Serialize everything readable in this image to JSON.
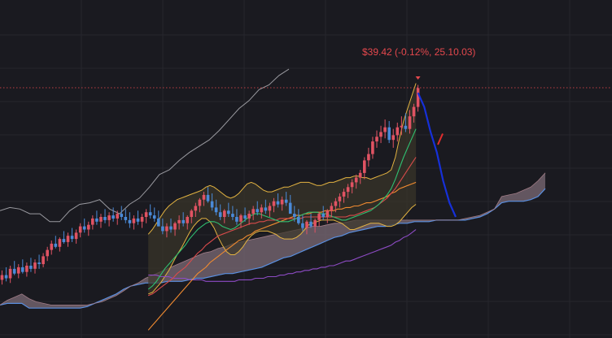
{
  "price_label": "$39.42 (-0.12%, 25.10.03)",
  "colors": {
    "background": "#1a1a20",
    "grid": "#26262d",
    "up": "#4a8ad8",
    "down": "#e05363",
    "bollinger": "#e3b341",
    "bb_fill": "#3a362a",
    "sma_short": "#2fbf71",
    "sma_mid": "#d94b4b",
    "sma_long": "#ef8a30",
    "sma_longest": "#8d4bc4",
    "cloud": "#7c6b76",
    "span_b": "#5a8fe0",
    "lagging": "#9a9aa0",
    "projection_blue": "#1630d9",
    "projection_red": "#e32d2d",
    "price_line": "#e5484d"
  },
  "chart_data": {
    "type": "line",
    "price_label": "$39.42 (-0.12%, 25.10.03)",
    "last_close": 39.42,
    "last_change_pct": -0.12,
    "last_date": "25.10.03",
    "ylim": [
      23.5,
      45
    ],
    "bars": 102,
    "projection_bars": 31,
    "candles": [
      [
        27.2,
        27.8,
        26.9,
        27.5
      ],
      [
        27.5,
        28.0,
        27.1,
        27.3
      ],
      [
        27.3,
        28.1,
        27.0,
        27.9
      ],
      [
        27.9,
        28.4,
        27.5,
        27.6
      ],
      [
        27.6,
        28.2,
        27.3,
        28.0
      ],
      [
        28.0,
        28.5,
        27.6,
        27.7
      ],
      [
        27.7,
        28.3,
        27.4,
        28.1
      ],
      [
        28.1,
        28.6,
        27.7,
        27.9
      ],
      [
        27.9,
        28.5,
        27.6,
        28.3
      ],
      [
        28.3,
        28.8,
        27.9,
        28.2
      ],
      [
        28.2,
        28.9,
        28.0,
        28.7
      ],
      [
        28.7,
        29.3,
        28.4,
        29.1
      ],
      [
        29.1,
        29.7,
        28.8,
        29.5
      ],
      [
        29.5,
        30.0,
        29.2,
        29.3
      ],
      [
        29.3,
        29.9,
        29.0,
        29.8
      ],
      [
        29.8,
        30.3,
        29.5,
        29.6
      ],
      [
        29.6,
        30.2,
        29.3,
        30.0
      ],
      [
        30.0,
        30.5,
        29.6,
        29.8
      ],
      [
        29.8,
        30.4,
        29.5,
        30.2
      ],
      [
        30.2,
        30.8,
        29.9,
        30.6
      ],
      [
        30.6,
        31.1,
        30.2,
        30.4
      ],
      [
        30.4,
        30.9,
        30.0,
        30.7
      ],
      [
        30.7,
        31.3,
        30.4,
        31.1
      ],
      [
        31.1,
        31.6,
        30.7,
        30.9
      ],
      [
        30.9,
        31.4,
        30.5,
        31.2
      ],
      [
        31.2,
        31.7,
        30.8,
        31.0
      ],
      [
        31.0,
        31.5,
        30.6,
        31.3
      ],
      [
        31.3,
        31.8,
        30.9,
        31.1
      ],
      [
        31.1,
        31.6,
        30.7,
        31.4
      ],
      [
        31.4,
        31.9,
        31.0,
        31.2
      ],
      [
        31.2,
        31.7,
        30.8,
        31.0
      ],
      [
        31.0,
        31.5,
        30.5,
        30.8
      ],
      [
        30.8,
        31.3,
        30.4,
        31.1
      ],
      [
        31.1,
        31.6,
        30.7,
        30.9
      ],
      [
        30.9,
        31.4,
        30.5,
        31.2
      ],
      [
        31.2,
        31.7,
        30.8,
        31.5
      ],
      [
        31.5,
        32.0,
        31.1,
        31.3
      ],
      [
        31.3,
        31.8,
        30.9,
        31.1
      ],
      [
        31.1,
        31.6,
        30.6,
        30.6
      ],
      [
        30.6,
        31.1,
        30.1,
        30.3
      ],
      [
        30.3,
        30.8,
        29.9,
        30.6
      ],
      [
        30.6,
        31.1,
        30.2,
        30.4
      ],
      [
        30.4,
        30.9,
        30.0,
        30.8
      ],
      [
        30.8,
        31.3,
        30.4,
        31.0
      ],
      [
        31.0,
        31.5,
        30.6,
        30.8
      ],
      [
        30.8,
        31.3,
        30.4,
        31.2
      ],
      [
        31.2,
        31.7,
        30.8,
        31.6
      ],
      [
        31.6,
        32.1,
        31.2,
        31.9
      ],
      [
        31.9,
        32.4,
        31.5,
        32.3
      ],
      [
        32.3,
        32.8,
        31.9,
        32.6
      ],
      [
        32.6,
        33.1,
        32.1,
        32.2
      ],
      [
        32.2,
        32.7,
        31.6,
        31.8
      ],
      [
        31.8,
        32.3,
        31.3,
        31.5
      ],
      [
        31.5,
        32.0,
        31.0,
        31.2
      ],
      [
        31.2,
        31.7,
        30.8,
        31.6
      ],
      [
        31.6,
        32.1,
        31.2,
        31.4
      ],
      [
        31.4,
        31.9,
        31.0,
        31.2
      ],
      [
        31.2,
        31.7,
        30.7,
        30.9
      ],
      [
        30.9,
        31.4,
        30.5,
        31.3
      ],
      [
        31.3,
        31.8,
        30.9,
        31.1
      ],
      [
        31.1,
        31.6,
        30.7,
        31.4
      ],
      [
        31.4,
        31.9,
        31.0,
        31.7
      ],
      [
        31.7,
        32.2,
        31.3,
        31.5
      ],
      [
        31.5,
        32.0,
        31.1,
        31.8
      ],
      [
        31.8,
        32.3,
        31.4,
        31.6
      ],
      [
        31.6,
        32.1,
        31.2,
        31.9
      ],
      [
        31.9,
        32.4,
        31.5,
        32.2
      ],
      [
        32.2,
        32.7,
        31.8,
        32.0
      ],
      [
        32.0,
        32.5,
        31.6,
        32.3
      ],
      [
        32.3,
        32.8,
        31.9,
        32.1
      ],
      [
        32.1,
        32.6,
        31.6,
        31.4
      ],
      [
        31.4,
        31.9,
        30.9,
        31.2
      ],
      [
        31.2,
        31.7,
        30.7,
        30.8
      ],
      [
        30.8,
        31.3,
        30.3,
        30.5
      ],
      [
        30.5,
        31.0,
        30.1,
        30.9
      ],
      [
        30.9,
        31.4,
        30.5,
        30.6
      ],
      [
        30.6,
        31.1,
        30.2,
        31.0
      ],
      [
        31.0,
        31.5,
        30.6,
        31.4
      ],
      [
        31.4,
        31.9,
        31.0,
        31.2
      ],
      [
        31.2,
        31.7,
        30.8,
        31.6
      ],
      [
        31.6,
        32.1,
        31.2,
        31.9
      ],
      [
        31.9,
        32.4,
        31.5,
        32.2
      ],
      [
        32.2,
        32.7,
        31.8,
        32.5
      ],
      [
        32.5,
        33.0,
        32.1,
        32.8
      ],
      [
        32.8,
        33.3,
        32.4,
        33.1
      ],
      [
        33.1,
        33.6,
        32.7,
        33.4
      ],
      [
        33.4,
        33.9,
        33.0,
        33.7
      ],
      [
        33.7,
        34.2,
        33.3,
        34.0
      ],
      [
        34.0,
        35.0,
        33.6,
        34.8
      ],
      [
        34.8,
        35.6,
        34.4,
        35.2
      ],
      [
        35.2,
        36.3,
        34.9,
        36.0
      ],
      [
        36.0,
        36.7,
        35.6,
        36.3
      ],
      [
        36.3,
        37.0,
        35.9,
        36.6
      ],
      [
        36.6,
        37.4,
        36.2,
        36.9
      ],
      [
        36.9,
        37.3,
        35.9,
        36.1
      ],
      [
        36.1,
        36.8,
        35.6,
        36.4
      ],
      [
        36.4,
        37.2,
        36.0,
        36.9
      ],
      [
        36.9,
        37.6,
        36.4,
        37.0
      ],
      [
        37.0,
        37.8,
        36.6,
        36.8
      ],
      [
        36.8,
        38.0,
        36.5,
        37.6
      ],
      [
        37.6,
        38.4,
        37.2,
        38.2
      ],
      [
        38.2,
        39.6,
        37.9,
        39.4
      ]
    ],
    "bollinger_upper": [
      30.1,
      30.4,
      30.8,
      31.2,
      31.6,
      31.9,
      32.1,
      32.3,
      32.4,
      32.5,
      32.6,
      32.7,
      32.8,
      32.9,
      33.1,
      33.2,
      33.1,
      32.9,
      32.7,
      32.5,
      32.4,
      32.5,
      32.7,
      33.0,
      33.3,
      33.4,
      33.3,
      33.1,
      32.9,
      32.8,
      32.8,
      32.9,
      33.0,
      33.1,
      33.1,
      33.2,
      33.3,
      33.4,
      33.4,
      33.4,
      33.3,
      33.2,
      33.2,
      33.3,
      33.4,
      33.4,
      33.5,
      33.6,
      33.7,
      33.7,
      33.8,
      33.8,
      33.7,
      33.7,
      33.6,
      33.7,
      33.8,
      33.9,
      34.0,
      34.2,
      35.0,
      36.2,
      37.3,
      38.1,
      38.9,
      39.7
    ],
    "bollinger_lower": [
      26.3,
      26.4,
      26.7,
      27.0,
      27.4,
      27.8,
      28.3,
      28.8,
      29.2,
      29.7,
      30.2,
      30.6,
      30.9,
      31.1,
      31.1,
      30.9,
      30.5,
      29.9,
      29.4,
      29.0,
      28.8,
      28.8,
      29.0,
      29.3,
      29.7,
      30.0,
      30.2,
      30.3,
      30.3,
      30.3,
      30.2,
      30.1,
      29.9,
      29.8,
      29.8,
      29.8,
      29.9,
      30.1,
      30.4,
      30.7,
      30.8,
      30.9,
      31.0,
      31.0,
      31.0,
      31.0,
      30.9,
      30.8,
      30.6,
      30.4,
      30.4,
      30.5,
      30.6,
      30.7,
      30.8,
      30.8,
      30.8,
      30.7,
      30.6,
      30.6,
      30.7,
      30.9,
      31.2,
      31.5,
      31.8,
      32.0
    ],
    "sma_short": [
      26.6,
      26.8,
      27.1,
      27.5,
      27.9,
      28.2,
      28.5,
      28.8,
      29.1,
      29.4,
      29.8,
      30.1,
      30.4,
      30.6,
      30.8,
      30.9,
      30.9,
      30.8,
      30.6,
      30.5,
      30.4,
      30.5,
      30.7,
      30.9,
      31.1,
      31.3,
      31.4,
      31.4,
      31.3,
      31.2,
      31.1,
      31.0,
      30.9,
      30.9,
      30.9,
      31.0,
      31.1,
      31.3,
      31.4,
      31.5,
      31.5,
      31.5,
      31.4,
      31.4,
      31.3,
      31.2,
      31.1,
      31.0,
      31.0,
      31.1,
      31.2,
      31.3,
      31.4,
      31.5,
      31.6,
      31.8,
      32.0,
      32.3,
      32.6,
      33.0,
      33.6,
      34.3,
      35.0,
      35.6,
      36.2,
      36.8
    ],
    "sma_mid": [
      26.2,
      26.3,
      26.5,
      26.7,
      26.9,
      27.1,
      27.3,
      27.6,
      27.8,
      28.0,
      28.3,
      28.6,
      28.9,
      29.1,
      29.4,
      29.6,
      29.8,
      30.0,
      30.1,
      30.2,
      30.3,
      30.4,
      30.5,
      30.6,
      30.7,
      30.8,
      30.8,
      30.9,
      30.9,
      31.0,
      31.0,
      31.0,
      31.1,
      31.1,
      31.1,
      31.1,
      31.1,
      31.1,
      31.2,
      31.2,
      31.2,
      31.2,
      31.2,
      31.2,
      31.2,
      31.2,
      31.2,
      31.2,
      31.2,
      31.3,
      31.3,
      31.4,
      31.5,
      31.6,
      31.7,
      31.8,
      32.0,
      32.2,
      32.4,
      32.7,
      33.0,
      33.4,
      33.8,
      34.2,
      34.6,
      35.0
    ],
    "sma_long": [
      24.0,
      24.3,
      24.6,
      24.9,
      25.2,
      25.5,
      25.8,
      26.1,
      26.4,
      26.7,
      27.0,
      27.3,
      27.6,
      27.8,
      28.0,
      28.3,
      28.5,
      28.7,
      28.9,
      29.1,
      29.3,
      29.5,
      29.7,
      29.8,
      30.0,
      30.1,
      30.3,
      30.4,
      30.5,
      30.6,
      30.7,
      30.8,
      30.9,
      31.0,
      31.1,
      31.2,
      31.3,
      31.3,
      31.4,
      31.4,
      31.5,
      31.5,
      31.5,
      31.6,
      31.6,
      31.6,
      31.7,
      31.7,
      31.8,
      31.8,
      31.9,
      31.9,
      32.0,
      32.1,
      32.1,
      32.2,
      32.3,
      32.4,
      32.5,
      32.7,
      32.8,
      33.0,
      33.1,
      33.2,
      33.3,
      33.4
    ],
    "sma_longest": [
      27.5,
      27.5,
      27.5,
      27.4,
      27.4,
      27.4,
      27.3,
      27.3,
      27.3,
      27.3,
      27.2,
      27.2,
      27.2,
      27.2,
      27.1,
      27.1,
      27.1,
      27.1,
      27.1,
      27.1,
      27.1,
      27.1,
      27.2,
      27.2,
      27.2,
      27.2,
      27.3,
      27.3,
      27.3,
      27.4,
      27.4,
      27.4,
      27.5,
      27.5,
      27.6,
      27.6,
      27.7,
      27.7,
      27.8,
      27.8,
      27.9,
      27.9,
      28.0,
      28.0,
      28.1,
      28.1,
      28.2,
      28.3,
      28.4,
      28.4,
      28.5,
      28.6,
      28.7,
      28.8,
      28.9,
      29.0,
      29.1,
      29.2,
      29.3,
      29.4,
      29.6,
      29.7,
      29.9,
      30.0,
      30.2,
      30.4
    ],
    "cloud_span_a": [
      25.6,
      25.9,
      26.1,
      26.3,
      26.0,
      25.8,
      25.7,
      25.6,
      25.6,
      25.6,
      25.6,
      25.6,
      25.6,
      25.7,
      25.8,
      26.0,
      26.2,
      26.5,
      26.8,
      27.0,
      27.3,
      27.5,
      27.7,
      27.9,
      28.1,
      28.3,
      28.5,
      28.7,
      28.9,
      29.0,
      29.2,
      29.3,
      29.5,
      29.6,
      29.7,
      29.8,
      29.9,
      30.0,
      30.1,
      30.2,
      30.3,
      30.4,
      30.5,
      30.6,
      30.6,
      30.7,
      30.8,
      30.8,
      30.9,
      31.0,
      31.0,
      31.0,
      31.0,
      31.0,
      31.0,
      31.0,
      31.0,
      31.0,
      31.0,
      31.0,
      31.0,
      31.0,
      31.0,
      31.0,
      31.1,
      31.2,
      31.3,
      31.5,
      31.7,
      32.5,
      32.6,
      32.7,
      32.9,
      33.1,
      33.5,
      34.0
    ],
    "cloud_span_b": [
      25.6,
      25.7,
      25.7,
      25.7,
      25.4,
      25.4,
      25.4,
      25.4,
      25.4,
      25.4,
      25.4,
      25.4,
      25.5,
      25.7,
      25.9,
      26.1,
      26.3,
      26.6,
      26.8,
      26.9,
      27.0,
      27.0,
      27.0,
      27.1,
      27.1,
      27.1,
      27.2,
      27.3,
      27.3,
      27.4,
      27.5,
      27.6,
      27.6,
      27.7,
      27.8,
      27.9,
      28.0,
      28.2,
      28.4,
      28.6,
      28.7,
      28.9,
      29.1,
      29.3,
      29.5,
      29.7,
      29.9,
      30.0,
      30.2,
      30.3,
      30.4,
      30.5,
      30.6,
      30.6,
      30.7,
      30.8,
      30.8,
      30.9,
      30.9,
      30.9,
      31.0,
      31.0,
      31.0,
      31.0,
      31.0,
      31.1,
      31.2,
      31.4,
      31.7,
      32.1,
      32.2,
      32.2,
      32.2,
      32.3,
      32.5,
      33.0
    ],
    "lagging_span": [
      31.6,
      31.8,
      31.7,
      31.4,
      31.4,
      30.9,
      30.9,
      31.6,
      32.0,
      32.1,
      32.3,
      31.7,
      31.4,
      32.0,
      32.4,
      33.1,
      33.9,
      34.2,
      34.8,
      35.3,
      35.7,
      36.1,
      36.7,
      37.4,
      38.1,
      38.6,
      39.3,
      39.6,
      40.2,
      40.6
    ],
    "projection": [
      39.1,
      38.2,
      36.6,
      35.3,
      33.5,
      32.1,
      31.2
    ],
    "projection_red": [
      35.8,
      36.5
    ]
  }
}
